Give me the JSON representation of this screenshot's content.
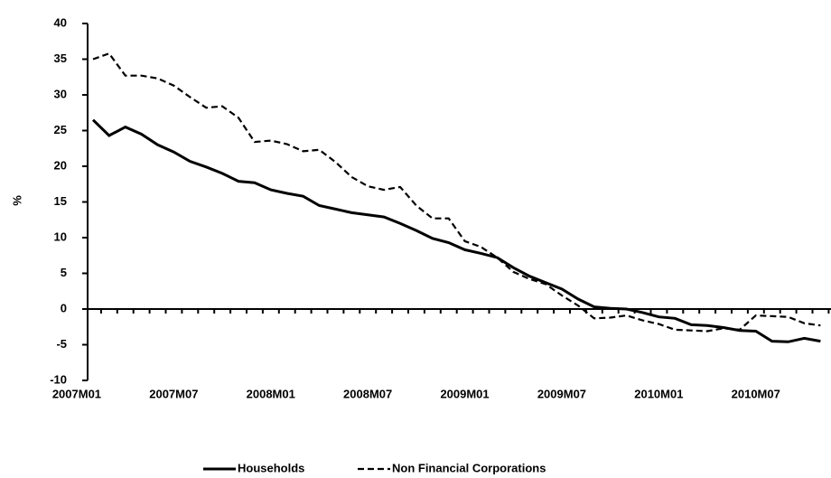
{
  "chart_data": {
    "type": "line",
    "y_label": "%",
    "categories": [
      "2007M01",
      null,
      null,
      null,
      null,
      null,
      "2007M07",
      null,
      null,
      null,
      null,
      null,
      "2008M01",
      null,
      null,
      null,
      null,
      null,
      "2008M07",
      null,
      null,
      null,
      null,
      null,
      "2009M01",
      null,
      null,
      null,
      null,
      null,
      "2009M07",
      null,
      null,
      null,
      null,
      null,
      "2010M01",
      null,
      null,
      null,
      null,
      null,
      "2010M07",
      null,
      null,
      null
    ],
    "series": [
      {
        "name": "Households",
        "color": "#000000",
        "dash": "solid",
        "values": [
          26.5,
          24.3,
          25.5,
          24.5,
          23.0,
          22.0,
          20.7,
          19.9,
          19.0,
          17.9,
          17.7,
          16.7,
          16.2,
          15.8,
          14.5,
          14.0,
          13.5,
          13.2,
          12.9,
          12.0,
          11.0,
          9.9,
          9.3,
          8.3,
          7.8,
          7.2,
          5.8,
          4.6,
          3.7,
          2.8,
          1.4,
          0.3,
          0.1,
          0.0,
          -0.5,
          -1.1,
          -1.3,
          -2.2,
          -2.3,
          -2.6,
          -3.0,
          -3.1,
          -4.5,
          -4.6,
          -4.1,
          -4.5
        ]
      },
      {
        "name": "Non Financial Corporations",
        "color": "#000000",
        "dash": "dashed",
        "values": [
          35.0,
          35.8,
          32.7,
          32.7,
          32.3,
          31.3,
          29.7,
          28.2,
          28.4,
          26.8,
          23.4,
          23.6,
          23.1,
          22.1,
          22.3,
          20.6,
          18.5,
          17.2,
          16.7,
          17.1,
          14.5,
          12.7,
          12.7,
          9.5,
          8.7,
          7.2,
          5.2,
          4.2,
          3.5,
          1.9,
          0.5,
          -1.3,
          -1.2,
          -0.9,
          -1.6,
          -2.1,
          -2.9,
          -3.0,
          -3.1,
          -2.7,
          -2.9,
          -0.9,
          -1.0,
          -1.1,
          -2.0,
          -2.3
        ]
      }
    ],
    "ylim": [
      -10,
      40
    ],
    "yticks": [
      -10,
      -5,
      0,
      5,
      10,
      15,
      20,
      25,
      30,
      35,
      40
    ],
    "grid": false,
    "legend": "bottom"
  }
}
